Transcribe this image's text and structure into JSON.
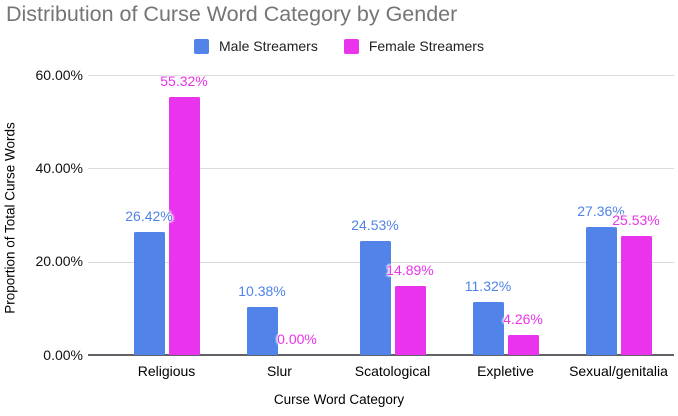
{
  "title": "Distribution of Curse Word Category by Gender",
  "chart_data": {
    "type": "bar",
    "title": "Distribution of Curse Word Category by Gender",
    "xlabel": "Curse Word Category",
    "ylabel": "Proportion of Total Curse Words",
    "categories": [
      "Religious",
      "Slur",
      "Scatological",
      "Expletive",
      "Sexual/genitalia"
    ],
    "series": [
      {
        "name": "Male Streamers",
        "color": "#5183E8",
        "values": [
          26.42,
          10.38,
          24.53,
          11.32,
          27.36
        ],
        "labels": [
          "26.42%",
          "10.38%",
          "24.53%",
          "11.32%",
          "27.36%"
        ]
      },
      {
        "name": "Female Streamers",
        "color": "#EA33EC",
        "values": [
          55.32,
          0.0,
          14.89,
          4.26,
          25.53
        ],
        "labels": [
          "55.32%",
          "0.00%",
          "14.89%",
          "4.26%",
          "25.53%"
        ]
      }
    ],
    "y_ticks": [
      "0.00%",
      "20.00%",
      "40.00%",
      "60.00%"
    ],
    "y_tick_values": [
      0,
      20,
      40,
      60
    ],
    "ylim": [
      0,
      60
    ],
    "grid": true,
    "legend_position": "top"
  },
  "colors": {
    "title_text": "#757575",
    "axis_text": "#111111",
    "gridline": "#dadada",
    "axis_line": "#5f6368",
    "background": "#ffffff"
  }
}
